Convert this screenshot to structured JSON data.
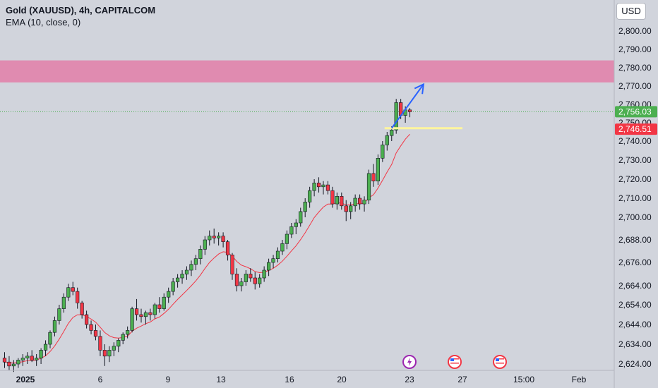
{
  "header": {
    "title": "Gold (XAUUSD), 4h, CAPITALCOM",
    "indicator": "EMA (10, close, 0)",
    "currency": "USD"
  },
  "colors": {
    "background": "#d1d4dc",
    "bull": "#4caf50",
    "bear": "#f23645",
    "ema": "#f23645",
    "zone": "#e08bb0",
    "support_line": "#fff59d",
    "arrow": "#2962ff",
    "last_price_tag": "#4caf50",
    "ema_tag": "#f23645"
  },
  "chart_data": {
    "type": "candlestick",
    "title": "Gold (XAUUSD), 4h, CAPITALCOM",
    "indicator": "EMA (10, close, 0)",
    "y_ticks": [
      2800,
      2790,
      2780,
      2770,
      2760,
      2750,
      2740,
      2730,
      2720,
      2710,
      2700,
      2688,
      2676,
      2664,
      2654,
      2644,
      2634,
      2624
    ],
    "y_tick_labels": [
      "2,800.00",
      "2,790.00",
      "2,780.00",
      "2,770.00",
      "2,760.00",
      "2,750.00",
      "2,740.00",
      "2,730.00",
      "2,720.00",
      "2,710.00",
      "2,700.00",
      "2,688.00",
      "2,676.00",
      "2,664.00",
      "2,654.00",
      "2,644.00",
      "2,634.00",
      "2,624.00"
    ],
    "x_ticks": [
      "2025",
      "6",
      "9",
      "13",
      "16",
      "20",
      "23",
      "27",
      "15:00",
      "Feb"
    ],
    "x_tick_bold": [
      "2025"
    ],
    "zone": {
      "low": 2772,
      "high": 2784
    },
    "last_price": 2756.03,
    "last_price_label": "2,756.03",
    "ema_last": 2746.51,
    "ema_last_label": "2,746.51",
    "support_level": 2747,
    "arrow": {
      "from_index": 85,
      "from_price": 2747,
      "to_index": 92,
      "to_price": 2771
    },
    "events": [
      "lightning",
      "us-flag",
      "us-flag"
    ],
    "candles": [
      [
        2627,
        2630,
        2622,
        2625
      ],
      [
        2625,
        2628,
        2621,
        2623
      ],
      [
        2623,
        2626,
        2620,
        2624
      ],
      [
        2624,
        2627,
        2622,
        2626
      ],
      [
        2626,
        2629,
        2623,
        2627
      ],
      [
        2627,
        2630,
        2624,
        2628
      ],
      [
        2628,
        2631,
        2625,
        2626
      ],
      [
        2626,
        2629,
        2623,
        2627
      ],
      [
        2627,
        2632,
        2624,
        2631
      ],
      [
        2631,
        2636,
        2628,
        2634
      ],
      [
        2634,
        2641,
        2632,
        2640
      ],
      [
        2640,
        2648,
        2638,
        2646
      ],
      [
        2646,
        2654,
        2644,
        2652
      ],
      [
        2652,
        2660,
        2650,
        2658
      ],
      [
        2658,
        2665,
        2656,
        2663
      ],
      [
        2663,
        2666,
        2659,
        2661
      ],
      [
        2661,
        2663,
        2652,
        2655
      ],
      [
        2655,
        2656,
        2647,
        2649
      ],
      [
        2649,
        2651,
        2642,
        2644
      ],
      [
        2644,
        2646,
        2639,
        2641
      ],
      [
        2641,
        2644,
        2636,
        2638
      ],
      [
        2638,
        2641,
        2628,
        2631
      ],
      [
        2631,
        2634,
        2623,
        2628
      ],
      [
        2628,
        2633,
        2625,
        2631
      ],
      [
        2631,
        2635,
        2628,
        2633
      ],
      [
        2633,
        2637,
        2630,
        2636
      ],
      [
        2636,
        2640,
        2634,
        2639
      ],
      [
        2639,
        2643,
        2637,
        2641
      ],
      [
        2641,
        2653,
        2640,
        2652
      ],
      [
        2652,
        2657,
        2646,
        2649
      ],
      [
        2649,
        2652,
        2645,
        2648
      ],
      [
        2648,
        2651,
        2644,
        2650
      ],
      [
        2650,
        2652,
        2646,
        2649
      ],
      [
        2649,
        2655,
        2647,
        2654
      ],
      [
        2654,
        2658,
        2650,
        2652
      ],
      [
        2652,
        2660,
        2651,
        2658
      ],
      [
        2658,
        2663,
        2655,
        2661
      ],
      [
        2661,
        2668,
        2659,
        2666
      ],
      [
        2666,
        2670,
        2663,
        2668
      ],
      [
        2668,
        2672,
        2665,
        2670
      ],
      [
        2670,
        2674,
        2667,
        2672
      ],
      [
        2672,
        2677,
        2669,
        2675
      ],
      [
        2675,
        2680,
        2672,
        2678
      ],
      [
        2678,
        2685,
        2675,
        2683
      ],
      [
        2683,
        2690,
        2680,
        2688
      ],
      [
        2688,
        2693,
        2685,
        2690
      ],
      [
        2690,
        2694,
        2686,
        2689
      ],
      [
        2689,
        2692,
        2685,
        2690
      ],
      [
        2690,
        2692,
        2684,
        2687
      ],
      [
        2687,
        2688,
        2677,
        2680
      ],
      [
        2680,
        2681,
        2667,
        2670
      ],
      [
        2670,
        2673,
        2661,
        2664
      ],
      [
        2664,
        2668,
        2661,
        2666
      ],
      [
        2666,
        2672,
        2664,
        2670
      ],
      [
        2670,
        2673,
        2666,
        2668
      ],
      [
        2668,
        2671,
        2662,
        2665
      ],
      [
        2665,
        2670,
        2663,
        2668
      ],
      [
        2668,
        2674,
        2666,
        2672
      ],
      [
        2672,
        2678,
        2669,
        2676
      ],
      [
        2676,
        2680,
        2673,
        2678
      ],
      [
        2678,
        2684,
        2676,
        2682
      ],
      [
        2682,
        2688,
        2680,
        2686
      ],
      [
        2686,
        2693,
        2683,
        2691
      ],
      [
        2691,
        2697,
        2689,
        2695
      ],
      [
        2695,
        2699,
        2691,
        2697
      ],
      [
        2697,
        2705,
        2695,
        2703
      ],
      [
        2703,
        2710,
        2700,
        2708
      ],
      [
        2708,
        2716,
        2705,
        2714
      ],
      [
        2714,
        2720,
        2711,
        2718
      ],
      [
        2718,
        2721,
        2713,
        2716
      ],
      [
        2716,
        2719,
        2712,
        2717
      ],
      [
        2717,
        2719,
        2712,
        2714
      ],
      [
        2714,
        2716,
        2705,
        2707
      ],
      [
        2707,
        2713,
        2704,
        2711
      ],
      [
        2711,
        2713,
        2704,
        2706
      ],
      [
        2706,
        2709,
        2698,
        2703
      ],
      [
        2703,
        2708,
        2699,
        2706
      ],
      [
        2706,
        2712,
        2703,
        2710
      ],
      [
        2710,
        2712,
        2704,
        2707
      ],
      [
        2707,
        2711,
        2703,
        2709
      ],
      [
        2709,
        2725,
        2707,
        2723
      ],
      [
        2723,
        2728,
        2716,
        2719
      ],
      [
        2719,
        2733,
        2717,
        2731
      ],
      [
        2731,
        2740,
        2729,
        2738
      ],
      [
        2738,
        2745,
        2735,
        2743
      ],
      [
        2743,
        2748,
        2740,
        2746
      ],
      [
        2746,
        2763,
        2744,
        2761
      ],
      [
        2761,
        2763,
        2752,
        2754
      ],
      [
        2754,
        2759,
        2750,
        2757
      ],
      [
        2757,
        2758,
        2753,
        2756
      ]
    ]
  }
}
